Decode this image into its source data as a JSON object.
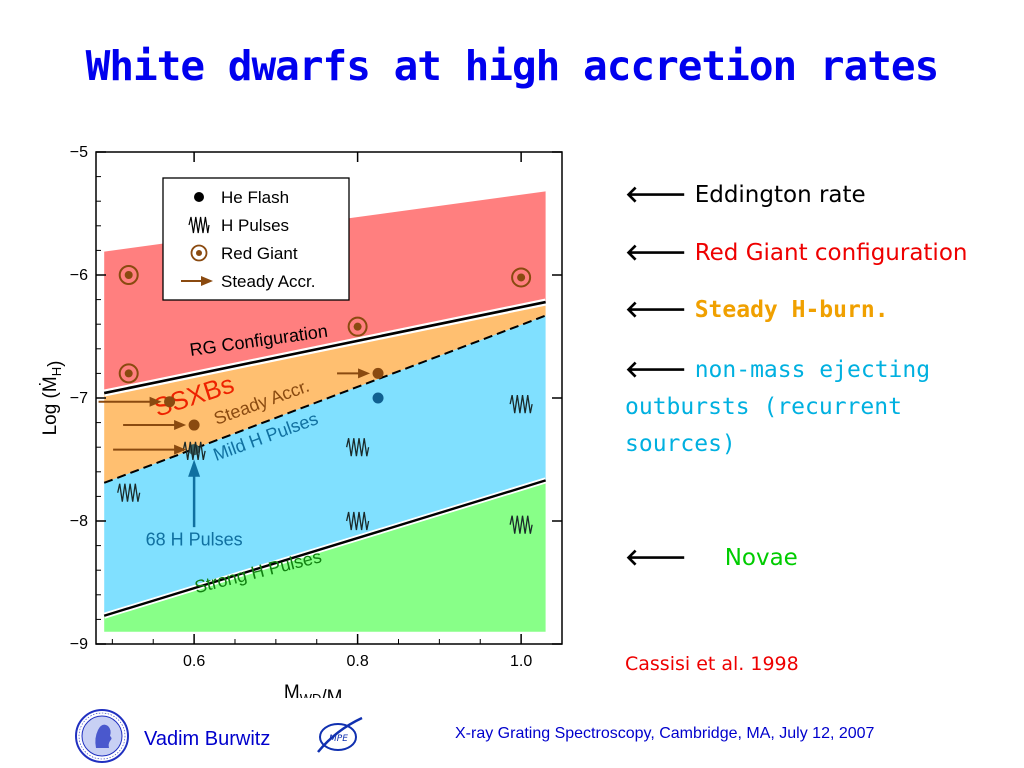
{
  "slide": {
    "title": "White dwarfs at high accretion rates",
    "annotations": [
      {
        "arrow": "🡐",
        "text": "Eddington rate"
      },
      {
        "arrow": "🡐",
        "text": "Red Giant configuration"
      },
      {
        "arrow": "🡐",
        "text": "Steady H-burn."
      },
      {
        "arrow": "🡐",
        "text": "non-mass ejecting outbursts (recurrent sources)"
      },
      {
        "arrow": "🡐",
        "text": "Novae"
      }
    ],
    "citation": "Cassisi et al. 1998",
    "author": "Vadim Burwitz",
    "footer": "X-ray Grating Spectroscopy, Cambridge, MA, July 12, 2007",
    "mpe_logo_text": "MPE"
  },
  "colors": {
    "title": "#0000ee",
    "red_giant_region": "#ff7f7f",
    "steady_region": "#ffbf70",
    "mild_pulses_region": "#80e0ff",
    "strong_pulses_region": "#88ff88",
    "ssxb_label": "#ee2200",
    "steady_label": "#8a4a10",
    "mild_label": "#1070a0",
    "strong_label": "#108010",
    "marker": "#8a4a10",
    "marker_blue": "#106090"
  },
  "chart_data": {
    "type": "scatter",
    "xlabel": "M_WD/M_☉",
    "ylabel": "Log (Ṁ_H)",
    "xlim": [
      0.48,
      1.05
    ],
    "ylim": [
      -9,
      -5
    ],
    "xticks": [
      0.6,
      0.8,
      1.0
    ],
    "xtick_labels": [
      "0.6",
      "0.8",
      "1.0"
    ],
    "yticks": [
      -5,
      -6,
      -7,
      -8,
      -9
    ],
    "ytick_labels": [
      "−5",
      "−6",
      "−7",
      "−8",
      "−9"
    ],
    "legend": {
      "placement": "top-left",
      "entries": [
        {
          "symbol": "dot",
          "label": "He Flash"
        },
        {
          "symbol": "zigzag",
          "label": "H Pulses"
        },
        {
          "symbol": "circled-dot",
          "label": "Red Giant"
        },
        {
          "symbol": "arrow",
          "label": "Steady Accr."
        }
      ]
    },
    "region_x": [
      0.49,
      1.03
    ],
    "boundaries": {
      "eddington": [
        -5.81,
        -5.32
      ],
      "rg_configuration": [
        -6.96,
        -6.22
      ],
      "steady_lower": [
        -7.69,
        -6.33
      ],
      "pulse_boundary": [
        -8.77,
        -7.67
      ],
      "bottom": [
        -8.9,
        -8.9
      ]
    },
    "region_labels": [
      {
        "text": "RG Configuration",
        "x": 0.68,
        "y": -6.58,
        "angle": -8,
        "color": "#000000"
      },
      {
        "text": "Steady Accr.",
        "x": 0.685,
        "y": -7.08,
        "angle": -20,
        "color": "#8a4a10"
      },
      {
        "text": "Mild H Pulses",
        "x": 0.69,
        "y": -7.36,
        "angle": -20,
        "color": "#1070a0"
      },
      {
        "text": "Strong H Pulses",
        "x": 0.68,
        "y": -8.46,
        "angle": -14,
        "color": "#108010"
      }
    ],
    "overlay_labels": [
      {
        "text": "SSXBs",
        "x": 0.603,
        "y": -7.05,
        "angle": -18,
        "color": "#ee2200"
      },
      {
        "text": "68 H Pulses",
        "x": 0.6,
        "y": -8.2,
        "color": "#1070a0"
      }
    ],
    "series": [
      {
        "name": "He Flash",
        "marker": "dot",
        "points": [
          [
            0.57,
            -7.03
          ],
          [
            0.6,
            -7.22
          ],
          [
            0.825,
            -6.8
          ],
          [
            0.6,
            -7.42
          ],
          [
            0.825,
            -7.0
          ]
        ]
      },
      {
        "name": "H Pulses",
        "marker": "zigzag",
        "points": [
          [
            0.52,
            -7.77
          ],
          [
            0.6,
            -7.43
          ],
          [
            0.8,
            -7.4
          ],
          [
            0.8,
            -8.0
          ],
          [
            1.0,
            -7.05
          ],
          [
            1.0,
            -8.03
          ]
        ]
      },
      {
        "name": "Red Giant",
        "marker": "circled-dot",
        "points": [
          [
            0.52,
            -6.0
          ],
          [
            0.52,
            -6.8
          ],
          [
            0.8,
            -6.42
          ],
          [
            1.0,
            -6.02
          ]
        ]
      },
      {
        "name": "Steady Accr.",
        "marker": "arrow",
        "points": [
          [
            0.57,
            -7.03
          ],
          [
            0.6,
            -7.22
          ],
          [
            0.6,
            -7.42
          ],
          [
            0.825,
            -6.8
          ]
        ]
      }
    ]
  }
}
